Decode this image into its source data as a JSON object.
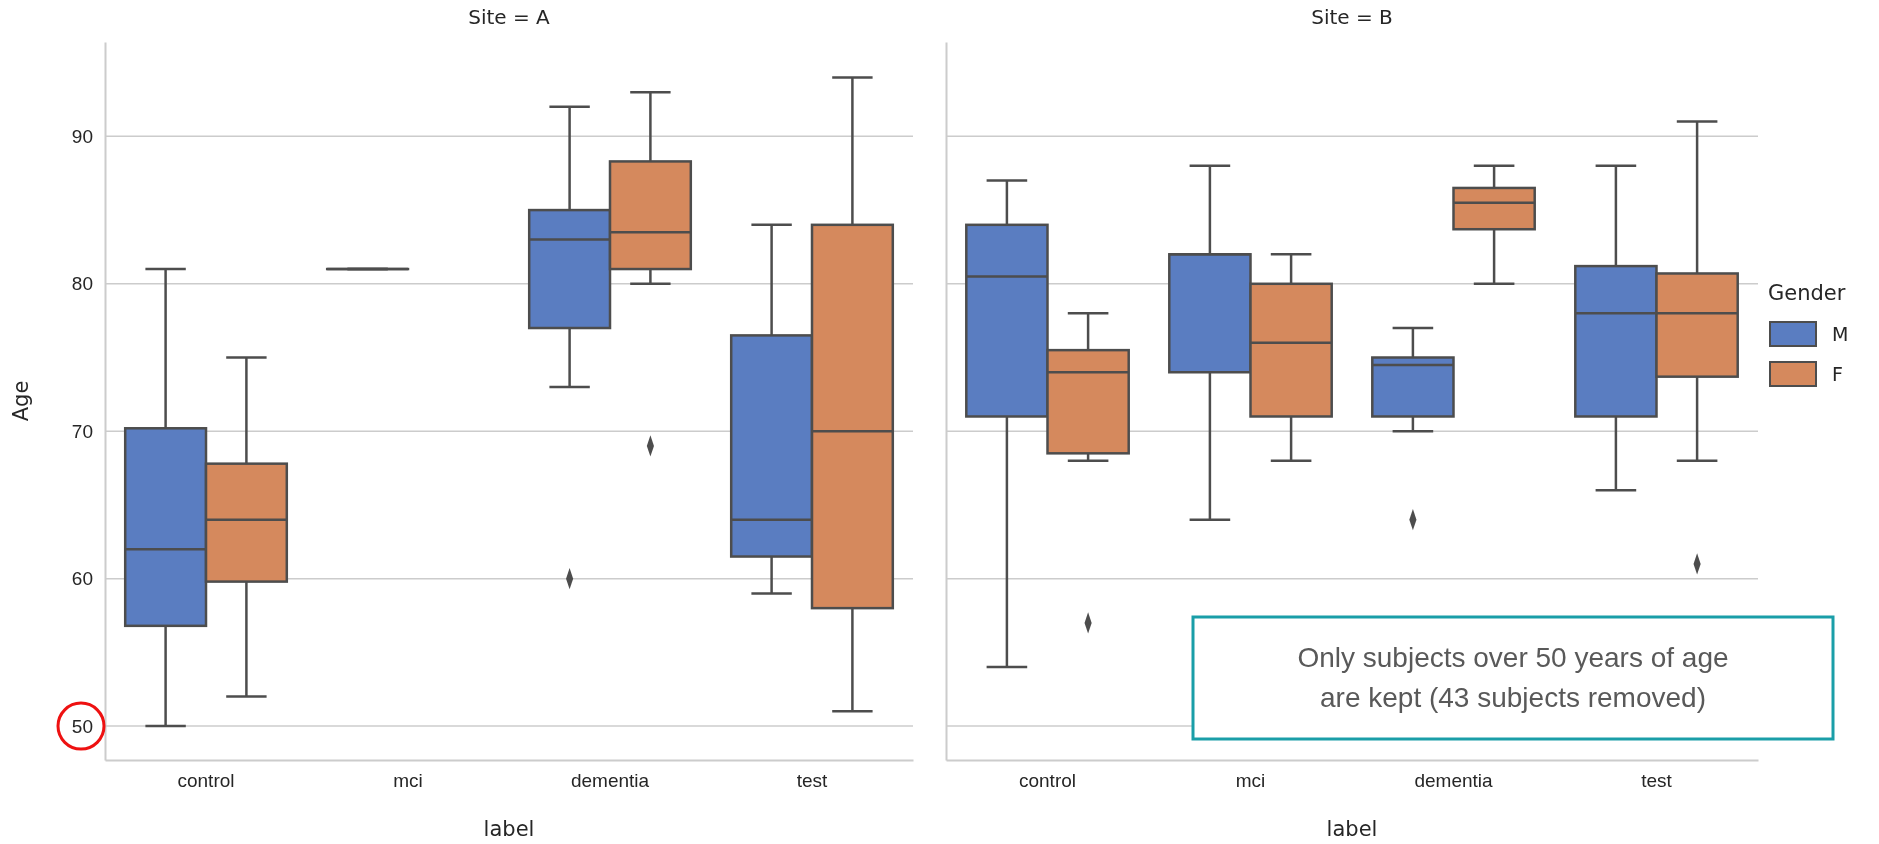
{
  "chart_data": [
    {
      "type": "box",
      "title": "Site = A",
      "xlabel": "label",
      "ylabel": "Age",
      "categories": [
        "control",
        "mci",
        "dementia",
        "test"
      ],
      "ylim": [
        47.7,
        96.4
      ],
      "yticks": [
        50,
        60,
        70,
        80,
        90
      ],
      "grid": "y",
      "legend": false,
      "marker": "diamond",
      "series": [
        {
          "color": "#5a7dc1",
          "boxes": [
            {
              "low": 50,
              "q1": 56.8,
              "median": 62,
              "q3": 70.2,
              "high": 81
            },
            {
              "low": 81,
              "q1": 81,
              "median": 81,
              "q3": 81,
              "high": 81
            },
            {
              "low": 73,
              "q1": 77,
              "median": 83,
              "q3": 85,
              "high": 92,
              "outliers": [
                60
              ]
            },
            {
              "low": 59,
              "q1": 61.5,
              "median": 64,
              "q3": 76.5,
              "high": 84
            }
          ]
        },
        {
          "color": "#d5895d",
          "boxes": [
            {
              "low": 52,
              "q1": 59.8,
              "median": 64,
              "q3": 67.8,
              "high": 75
            },
            null,
            {
              "low": 80,
              "q1": 81,
              "median": 83.5,
              "q3": 88.3,
              "high": 93,
              "outliers": [
                69
              ]
            },
            {
              "low": 51,
              "q1": 58,
              "median": 70,
              "q3": 84,
              "high": 94
            }
          ]
        }
      ]
    },
    {
      "type": "box",
      "title": "Site = B",
      "xlabel": "label",
      "legend_title": "Gender",
      "categories": [
        "control",
        "mci",
        "dementia",
        "test"
      ],
      "ylim": [
        47.7,
        96.4
      ],
      "yticks": [
        50,
        60,
        70,
        80,
        90
      ],
      "tick_labels": "x",
      "grid": "y",
      "legend": "right",
      "marker": "diamond",
      "annotations": [
        "Only subjects over 50 years of age are kept (43 subjects removed)"
      ],
      "series": [
        {
          "name": "M",
          "color": "#5a7dc1",
          "boxes": [
            {
              "low": 54,
              "q1": 71,
              "median": 80.5,
              "q3": 84,
              "high": 87
            },
            {
              "low": 64,
              "q1": 74,
              "median": 82,
              "q3": 82,
              "high": 88
            },
            {
              "low": 70,
              "q1": 71,
              "median": 74.5,
              "q3": 75,
              "high": 77,
              "outliers": [
                64
              ]
            },
            {
              "low": 66,
              "q1": 71,
              "median": 78,
              "q3": 81.2,
              "high": 88
            }
          ]
        },
        {
          "name": "F",
          "color": "#d5895d",
          "boxes": [
            {
              "low": 68,
              "q1": 68.5,
              "median": 74,
              "q3": 75.5,
              "high": 78,
              "outliers": [
                57
              ]
            },
            {
              "low": 68,
              "q1": 71,
              "median": 76,
              "q3": 80,
              "high": 82
            },
            {
              "low": 80,
              "q1": 83.7,
              "median": 85.5,
              "q3": 86.5,
              "high": 88
            },
            {
              "low": 68,
              "q1": 73.7,
              "median": 78,
              "q3": 80.7,
              "high": 91,
              "outliers": [
                61
              ]
            }
          ]
        }
      ]
    }
  ]
}
